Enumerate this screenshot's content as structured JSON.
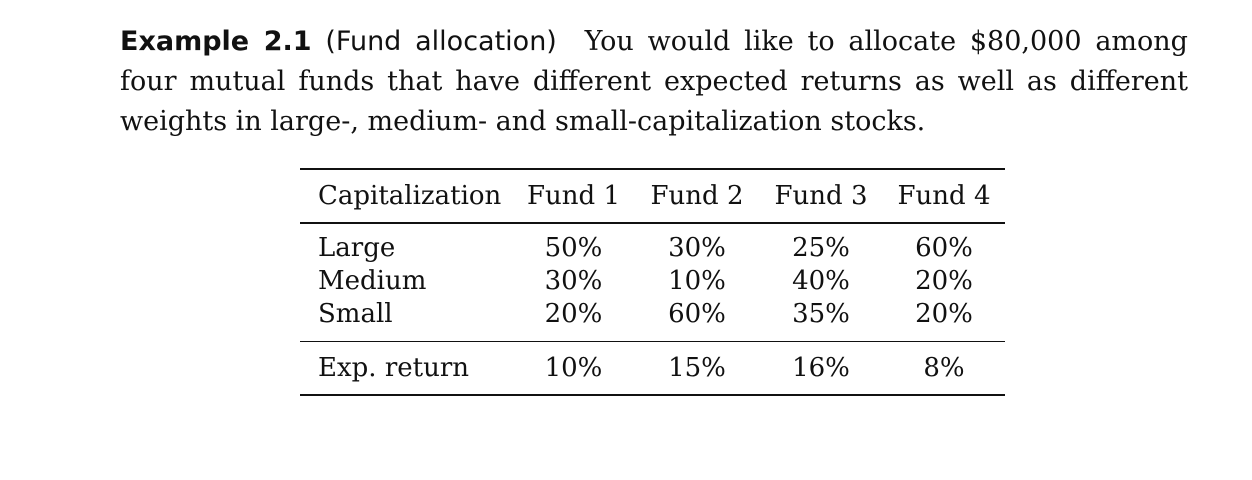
{
  "example": {
    "label": "Example 2.1",
    "topic": "(Fund allocation)",
    "text": "You would like to allocate $80,000 among four mutual funds that have different expected returns as well as different weights in large-, medium- and small-capitalization stocks."
  },
  "table": {
    "header": [
      "Capitalization",
      "Fund 1",
      "Fund 2",
      "Fund 3",
      "Fund 4"
    ],
    "rows": [
      {
        "label": "Large",
        "values": [
          "50%",
          "30%",
          "25%",
          "60%"
        ]
      },
      {
        "label": "Medium",
        "values": [
          "30%",
          "10%",
          "40%",
          "20%"
        ]
      },
      {
        "label": "Small",
        "values": [
          "20%",
          "60%",
          "35%",
          "20%"
        ]
      }
    ],
    "footer": {
      "label": "Exp. return",
      "values": [
        "10%",
        "15%",
        "16%",
        "8%"
      ]
    }
  }
}
